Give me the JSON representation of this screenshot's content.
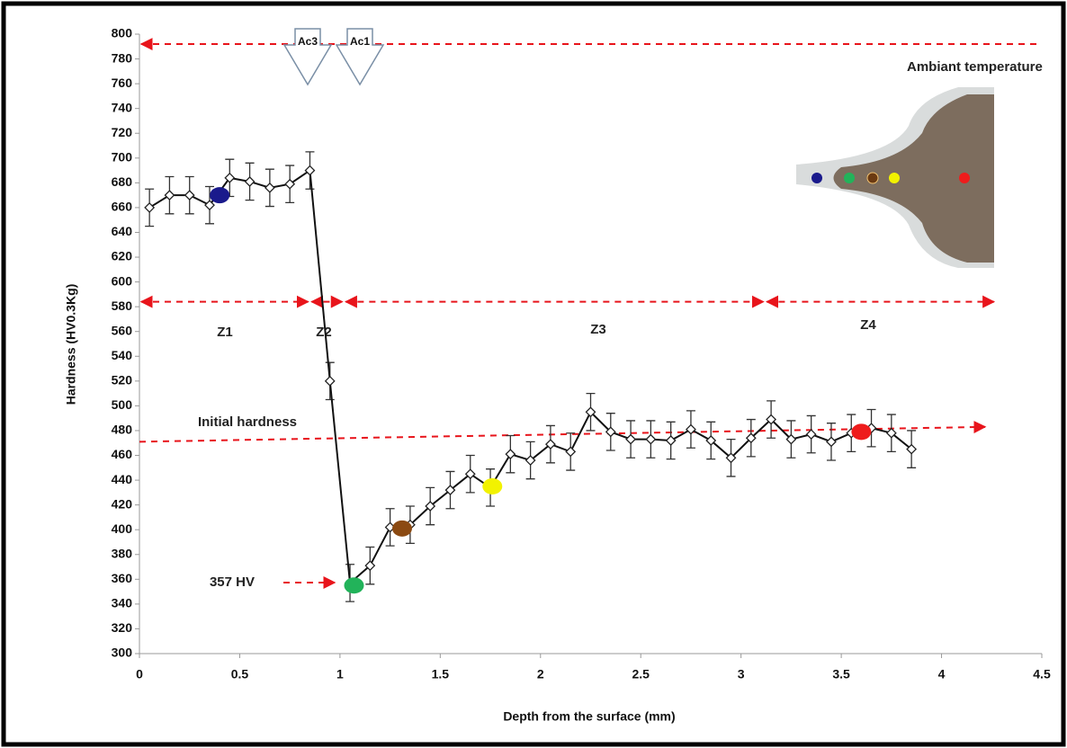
{
  "chart_data": {
    "type": "line",
    "x_label": "Depth from the surface (mm)",
    "y_label": "Hardness (HV0.3Kg)",
    "xlim": [
      0,
      4.5
    ],
    "ylim": [
      300,
      800
    ],
    "xticks": [
      0,
      0.5,
      1,
      1.5,
      2,
      2.5,
      3,
      3.5,
      4,
      4.5
    ],
    "yticks": [
      300,
      320,
      340,
      360,
      380,
      400,
      420,
      440,
      460,
      480,
      500,
      520,
      540,
      560,
      580,
      600,
      620,
      640,
      660,
      680,
      700,
      720,
      740,
      760,
      780,
      800
    ],
    "series": [
      {
        "color": "#111111",
        "x": [
          0.05,
          0.15,
          0.25,
          0.35,
          0.45,
          0.55,
          0.65,
          0.75,
          0.85,
          0.95,
          1.05,
          1.15,
          1.25,
          1.35,
          1.45,
          1.55,
          1.65,
          1.75,
          1.85,
          1.95,
          2.05,
          2.15,
          2.25,
          2.35,
          2.45,
          2.55,
          2.65,
          2.75,
          2.85,
          2.95,
          3.05,
          3.15,
          3.25,
          3.35,
          3.45,
          3.55,
          3.65,
          3.75,
          3.85
        ],
        "values": [
          660,
          670,
          670,
          662,
          684,
          681,
          676,
          679,
          690,
          520,
          357,
          371,
          402,
          404,
          419,
          432,
          445,
          434,
          461,
          456,
          469,
          463,
          495,
          479,
          473,
          473,
          472,
          481,
          472,
          458,
          474,
          489,
          473,
          477,
          471,
          478,
          482,
          478,
          465
        ],
        "errors": [
          15,
          15,
          15,
          15,
          15,
          15,
          15,
          15,
          15,
          15,
          15,
          15,
          15,
          15,
          15,
          15,
          15,
          15,
          15,
          15,
          15,
          15,
          15,
          15,
          15,
          15,
          15,
          15,
          15,
          15,
          15,
          15,
          15,
          15,
          15,
          15,
          15,
          15,
          15
        ]
      }
    ],
    "highlights": [
      {
        "x": 0.4,
        "y": 670,
        "color": "#1a1a8c"
      },
      {
        "x": 1.07,
        "y": 355,
        "color": "#22b35a"
      },
      {
        "x": 1.31,
        "y": 401,
        "color": "#8b4a12"
      },
      {
        "x": 1.76,
        "y": 435,
        "color": "#f2f200"
      },
      {
        "x": 3.6,
        "y": 479,
        "color": "#ee1c1c"
      }
    ],
    "upper_line": 792,
    "zone_line": 584,
    "initial_hardness_line": [
      471,
      483
    ],
    "zone_bounds": [
      0,
      0.85,
      1.02,
      3.12,
      4.27
    ],
    "zones": [
      "Z1",
      "Z2",
      "Z3",
      "Z4"
    ],
    "transformations": [
      "Ac3",
      "Ac1"
    ],
    "annotations": [
      "Initial hardness",
      "357 HV",
      "Ambiant temperature"
    ]
  }
}
